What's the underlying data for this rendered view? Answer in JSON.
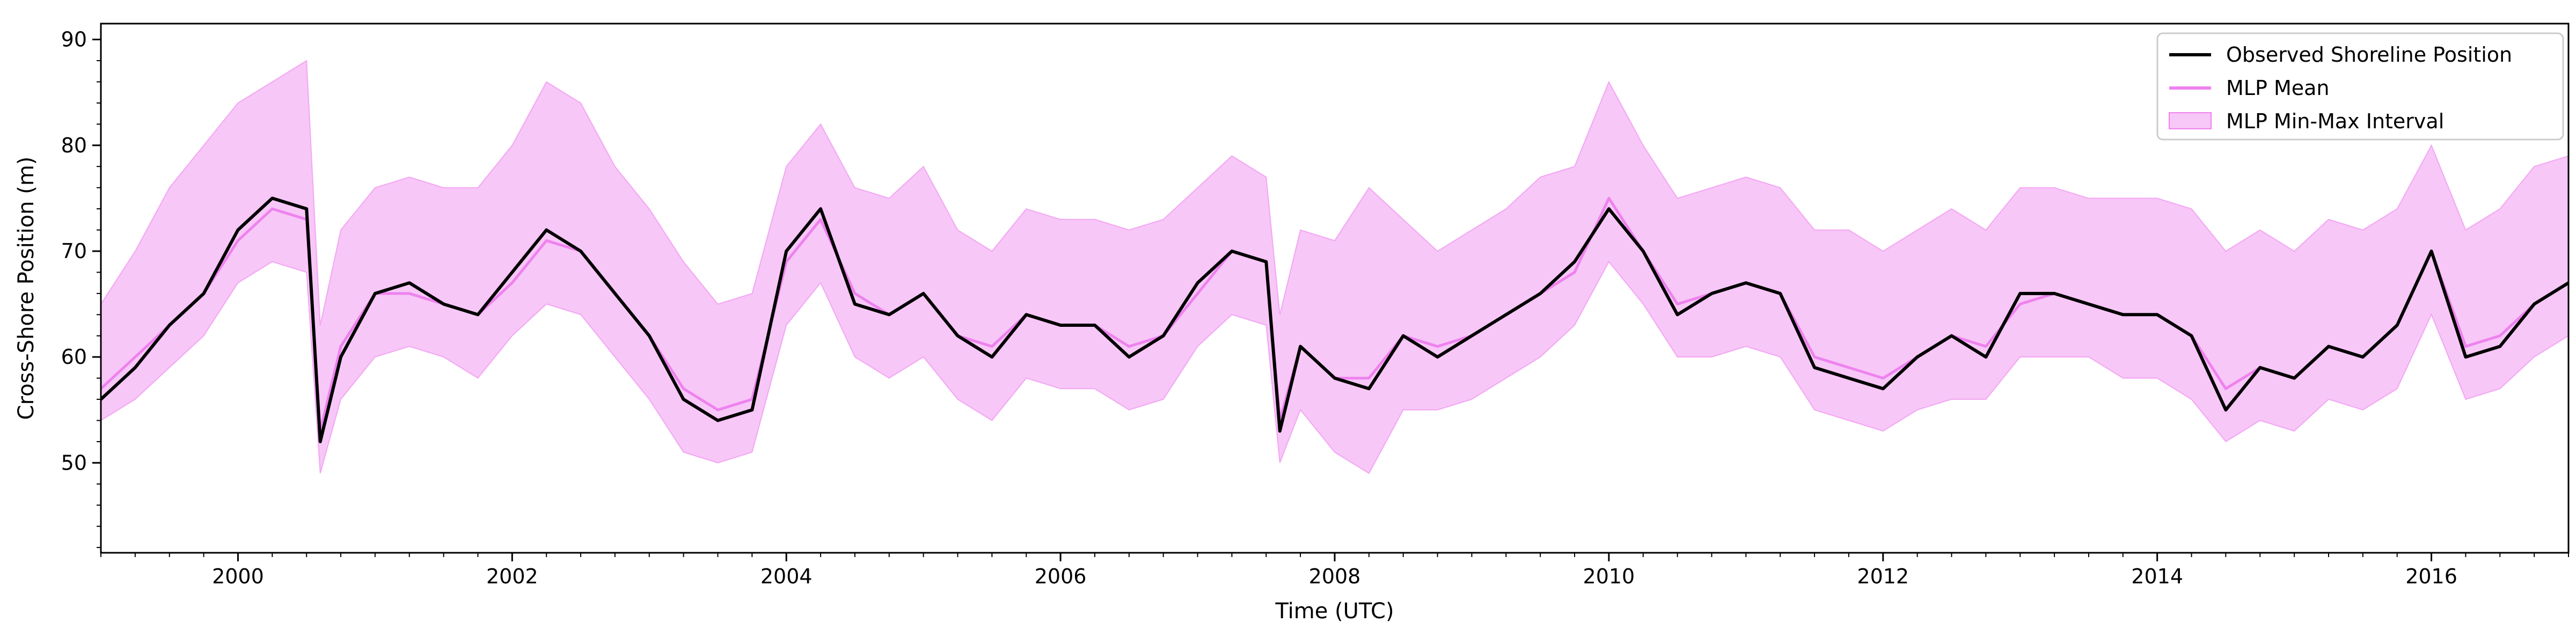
{
  "chart_data": {
    "type": "line",
    "title": "",
    "xlabel": "Time (UTC)",
    "ylabel": "Cross-Shore Position (m)",
    "xlim": [
      1999.0,
      2017.0
    ],
    "ylim": [
      41.5,
      91.5
    ],
    "x_ticks": [
      2000,
      2002,
      2004,
      2006,
      2008,
      2010,
      2012,
      2014,
      2016
    ],
    "x_tick_labels": [
      "2000",
      "2002",
      "2004",
      "2006",
      "2008",
      "2010",
      "2012",
      "2014",
      "2016"
    ],
    "y_ticks": [
      50,
      60,
      70,
      80,
      90
    ],
    "y_tick_labels": [
      "50",
      "60",
      "70",
      "80",
      "90"
    ],
    "grid": false,
    "legend_position": "top-right",
    "legend": [
      {
        "label": "Observed Shoreline Position",
        "style": "line",
        "color": "#000000"
      },
      {
        "label": "MLP Mean",
        "style": "line",
        "color": "#ee82ee"
      },
      {
        "label": "MLP Min-Max Interval",
        "style": "band",
        "color": "#ee82ee"
      }
    ],
    "colors": {
      "observed": "#000000",
      "mean": "#ee82ee",
      "band": "#ee82ee"
    },
    "x": [
      1999.0,
      1999.25,
      1999.5,
      1999.75,
      2000.0,
      2000.25,
      2000.5,
      2000.6,
      2000.75,
      2001.0,
      2001.25,
      2001.5,
      2001.75,
      2002.0,
      2002.25,
      2002.5,
      2002.75,
      2003.0,
      2003.25,
      2003.5,
      2003.75,
      2004.0,
      2004.25,
      2004.5,
      2004.75,
      2005.0,
      2005.25,
      2005.5,
      2005.75,
      2006.0,
      2006.25,
      2006.5,
      2006.75,
      2007.0,
      2007.25,
      2007.5,
      2007.6,
      2007.75,
      2008.0,
      2008.25,
      2008.5,
      2008.75,
      2009.0,
      2009.25,
      2009.5,
      2009.75,
      2010.0,
      2010.25,
      2010.5,
      2010.75,
      2011.0,
      2011.25,
      2011.5,
      2011.75,
      2012.0,
      2012.25,
      2012.5,
      2012.75,
      2013.0,
      2013.25,
      2013.5,
      2013.75,
      2014.0,
      2014.25,
      2014.5,
      2014.75,
      2015.0,
      2015.25,
      2015.5,
      2015.75,
      2016.0,
      2016.25,
      2016.5,
      2016.75,
      2017.0
    ],
    "series": [
      {
        "name": "Observed Shoreline Position",
        "values": [
          56,
          59,
          63,
          66,
          72,
          75,
          74,
          52,
          60,
          66,
          67,
          65,
          64,
          68,
          72,
          70,
          66,
          62,
          56,
          54,
          55,
          70,
          74,
          65,
          64,
          66,
          62,
          60,
          64,
          63,
          63,
          60,
          62,
          67,
          70,
          69,
          53,
          61,
          58,
          57,
          62,
          60,
          62,
          64,
          66,
          69,
          74,
          70,
          64,
          66,
          67,
          66,
          59,
          58,
          57,
          60,
          62,
          60,
          66,
          66,
          65,
          64,
          64,
          62,
          55,
          59,
          58,
          61,
          60,
          63,
          70,
          60,
          61,
          65,
          67
        ]
      },
      {
        "name": "MLP Mean",
        "values": [
          57,
          60,
          63,
          66,
          71,
          74,
          73,
          53,
          61,
          66,
          66,
          65,
          64,
          67,
          71,
          70,
          66,
          62,
          57,
          55,
          56,
          69,
          73,
          66,
          64,
          66,
          62,
          61,
          64,
          63,
          63,
          61,
          62,
          66,
          70,
          69,
          54,
          61,
          58,
          58,
          62,
          61,
          62,
          64,
          66,
          68,
          75,
          70,
          65,
          66,
          67,
          66,
          60,
          59,
          58,
          60,
          62,
          61,
          65,
          66,
          65,
          64,
          64,
          62,
          57,
          59,
          58,
          61,
          60,
          63,
          70,
          61,
          62,
          65,
          67
        ]
      }
    ],
    "band": {
      "name": "MLP Min-Max Interval",
      "lower": [
        54,
        56,
        59,
        62,
        67,
        69,
        68,
        49,
        56,
        60,
        61,
        60,
        58,
        62,
        65,
        64,
        60,
        56,
        51,
        50,
        51,
        63,
        67,
        60,
        58,
        60,
        56,
        54,
        58,
        57,
        57,
        55,
        56,
        61,
        64,
        63,
        50,
        55,
        51,
        49,
        55,
        55,
        56,
        58,
        60,
        63,
        69,
        65,
        60,
        60,
        61,
        60,
        55,
        54,
        53,
        55,
        56,
        56,
        60,
        60,
        60,
        58,
        58,
        56,
        52,
        54,
        53,
        56,
        55,
        57,
        64,
        56,
        57,
        60,
        62
      ],
      "upper": [
        65,
        70,
        76,
        80,
        84,
        86,
        88,
        63,
        72,
        76,
        77,
        76,
        76,
        80,
        86,
        84,
        78,
        74,
        69,
        65,
        66,
        78,
        82,
        76,
        75,
        78,
        72,
        70,
        74,
        73,
        73,
        72,
        73,
        76,
        79,
        77,
        64,
        72,
        71,
        76,
        73,
        70,
        72,
        74,
        77,
        78,
        86,
        80,
        75,
        76,
        77,
        76,
        72,
        72,
        70,
        72,
        74,
        72,
        76,
        76,
        75,
        75,
        75,
        74,
        70,
        72,
        70,
        73,
        72,
        74,
        80,
        72,
        74,
        78,
        79
      ]
    }
  }
}
